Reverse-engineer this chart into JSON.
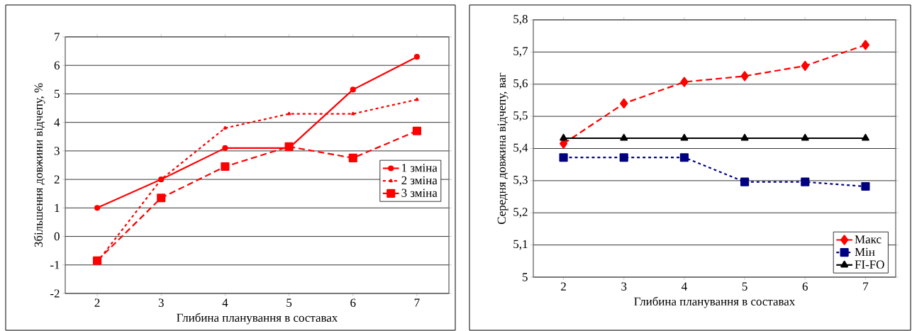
{
  "chart_data": [
    {
      "type": "line",
      "xlabel": "Глибина планування в составах",
      "ylabel": "Збільшення довжини відчепу, %",
      "categories": [
        "2",
        "3",
        "4",
        "5",
        "6",
        "7"
      ],
      "ylim": [
        -2,
        7
      ],
      "yticks": [
        -2,
        -1,
        0,
        1,
        2,
        3,
        4,
        5,
        6,
        7
      ],
      "grid": "y",
      "legend": "right",
      "series": [
        {
          "name": "1 зміна",
          "color": "#ff0000",
          "line_style": "solid",
          "marker": "circle",
          "values": [
            1.0,
            2.0,
            3.1,
            3.1,
            5.15,
            6.3
          ]
        },
        {
          "name": "2 зміна",
          "color": "#ff0000",
          "line_style": "dotted",
          "marker": "triangle",
          "values": [
            -0.9,
            2.0,
            3.8,
            4.3,
            4.3,
            4.8
          ]
        },
        {
          "name": "3 зміна",
          "color": "#ff0000",
          "line_style": "dashed",
          "marker": "square",
          "values": [
            -0.85,
            1.35,
            2.45,
            3.15,
            2.75,
            3.7
          ]
        }
      ]
    },
    {
      "type": "line",
      "xlabel": "Глибина планування в составах",
      "ylabel": "Середня довжина відчепу, ваг",
      "categories": [
        "2",
        "3",
        "4",
        "5",
        "6",
        "7"
      ],
      "ylim": [
        5,
        5.8
      ],
      "yticks": [
        5,
        {
          "value": 5.1,
          "label": "5,1"
        },
        {
          "value": 5.2,
          "label": "5,2"
        },
        {
          "value": 5.3,
          "label": "5,3"
        },
        {
          "value": 5.4,
          "label": "5,4"
        },
        {
          "value": 5.5,
          "label": "5,5"
        },
        {
          "value": 5.6,
          "label": "5,6"
        },
        {
          "value": 5.7,
          "label": "5,7"
        },
        {
          "value": 5.8,
          "label": "5,8"
        }
      ],
      "grid": "y",
      "legend": "bottom right",
      "series": [
        {
          "name": "Макс",
          "color": "#ff0000",
          "line_style": "dashed",
          "marker": "diamond",
          "values": [
            5.415,
            5.54,
            5.607,
            5.625,
            5.657,
            5.722
          ]
        },
        {
          "name": "Мін",
          "color": "#000080",
          "line_style": "dotted",
          "marker": "square",
          "values": [
            5.372,
            5.372,
            5.372,
            5.296,
            5.296,
            5.282
          ]
        },
        {
          "name": "FI-FO",
          "color": "#000000",
          "line_style": "solid",
          "marker": "triangle",
          "values": [
            5.432,
            5.432,
            5.432,
            5.432,
            5.432,
            5.432
          ]
        }
      ]
    }
  ]
}
